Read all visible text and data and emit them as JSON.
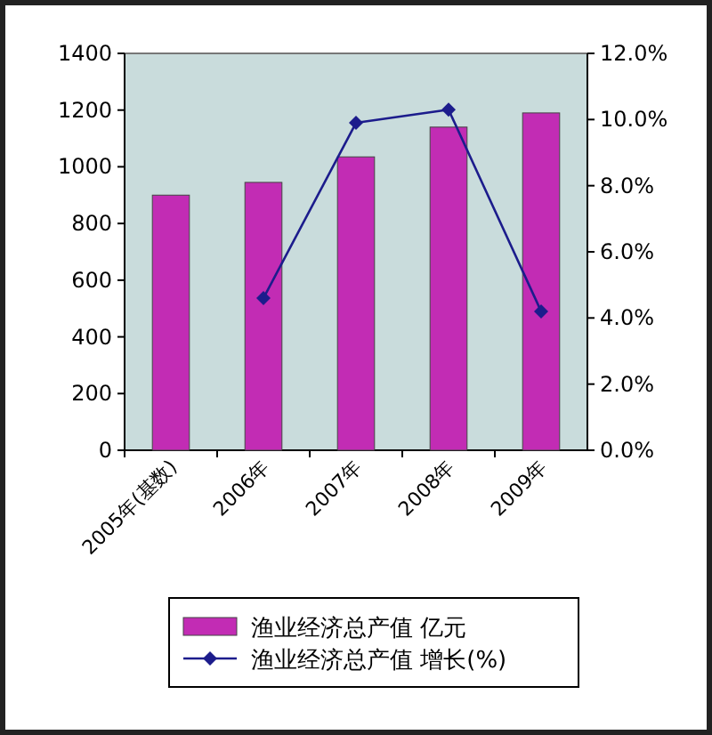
{
  "chart_data": {
    "type": "bar",
    "categories": [
      "2005年(基数)",
      "2006年",
      "2007年",
      "2008年",
      "2009年"
    ],
    "series": [
      {
        "name": "渔业经济总产值  亿元",
        "color": "#c22cb4",
        "values": [
          900,
          945,
          1035,
          1140,
          1190
        ]
      },
      {
        "name": "渔业经济总产值  增长(%)",
        "type": "line",
        "axis": "y2",
        "color": "#1c1c8c",
        "marker": "diamond",
        "values": [
          null,
          4.6,
          9.9,
          10.3,
          4.2
        ]
      }
    ],
    "ylim": [
      0,
      1400
    ],
    "yticks": [
      0,
      200,
      400,
      600,
      800,
      1000,
      1200,
      1400
    ],
    "y2lim": [
      0,
      12
    ],
    "y2ticks": [
      {
        "value": 0,
        "label": "0.0%"
      },
      {
        "value": 2,
        "label": "2.0%"
      },
      {
        "value": 4,
        "label": "4.0%"
      },
      {
        "value": 6,
        "label": "6.0%"
      },
      {
        "value": 8,
        "label": "8.0%"
      },
      {
        "value": 10,
        "label": "10.0%"
      },
      {
        "value": 12,
        "label": "12.0%"
      }
    ],
    "legend": "bottom",
    "grid": false
  }
}
